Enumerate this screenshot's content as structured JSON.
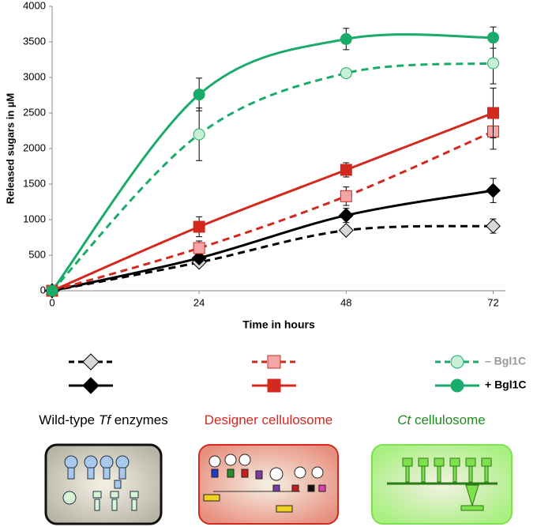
{
  "chart_data": {
    "type": "line",
    "x_label": "Time in hours",
    "y_label": "Released sugars in µM",
    "x": [
      0,
      24,
      48,
      72
    ],
    "xlim": [
      0,
      74
    ],
    "xticks": [
      0,
      24,
      48,
      72
    ],
    "ylim": [
      0,
      4000
    ],
    "yticks": [
      0,
      500,
      1000,
      1500,
      2000,
      2500,
      3000,
      3500,
      4000
    ],
    "legend_rows": [
      "– Bgl1C",
      "+ Bgl1C"
    ],
    "series": [
      {
        "color": "#000000",
        "marker": "diamond",
        "marker_fill": "#d9d9d9",
        "dashed": true,
        "values": [
          0,
          400,
          850,
          910
        ],
        "errors": [
          0,
          30,
          40,
          100
        ]
      },
      {
        "color": "#000000",
        "marker": "diamond",
        "marker_fill": "#000000",
        "dashed": false,
        "values": [
          0,
          460,
          1060,
          1410
        ],
        "errors": [
          0,
          40,
          100,
          170
        ]
      },
      {
        "color": "#d2281e",
        "marker": "square",
        "marker_fill": "#f4a6a6",
        "dashed": true,
        "values": [
          0,
          600,
          1330,
          2240
        ],
        "errors": [
          0,
          100,
          130,
          250
        ]
      },
      {
        "color": "#d2281e",
        "marker": "square",
        "marker_fill": "#d2281e",
        "dashed": false,
        "values": [
          0,
          900,
          1700,
          2500
        ],
        "errors": [
          0,
          140,
          100,
          350
        ]
      },
      {
        "color": "#1aaa6a",
        "marker": "circle",
        "marker_fill": "#c8f0d4",
        "dashed": true,
        "values": [
          0,
          2200,
          3060,
          3200
        ],
        "errors": [
          0,
          370,
          60,
          290
        ]
      },
      {
        "color": "#1aaa6a",
        "marker": "circle",
        "marker_fill": "#1aaa6a",
        "dashed": false,
        "values": [
          0,
          2760,
          3540,
          3560
        ],
        "errors": [
          0,
          230,
          150,
          150
        ]
      }
    ]
  },
  "panels": [
    {
      "color": "#000000",
      "label": [
        "Wild-type ",
        "Tf",
        " enzymes"
      ]
    },
    {
      "color": "#d2281e",
      "label": [
        "Designer cellulosome"
      ]
    },
    {
      "color": "#1e8c1e",
      "label": [
        "Ct",
        " cellulosome"
      ]
    }
  ]
}
